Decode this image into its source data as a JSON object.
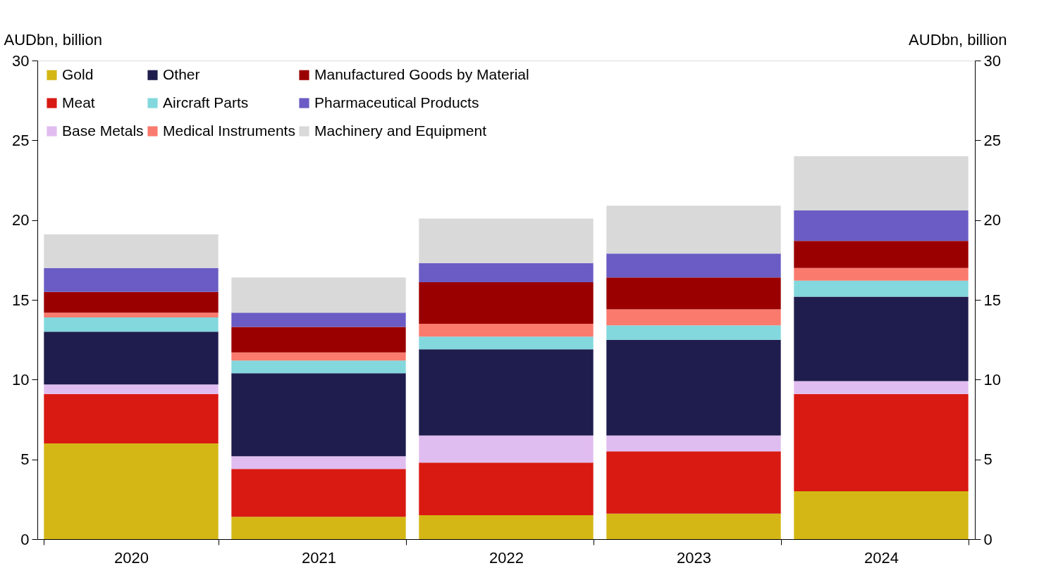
{
  "chart_data": {
    "type": "bar",
    "stacked": true,
    "ylabel": "AUDbn, billion",
    "y2label": "AUDbn, billion",
    "categories": [
      "2020",
      "2021",
      "2022",
      "2023",
      "2024"
    ],
    "ylim": [
      0,
      30
    ],
    "yticks": [
      0,
      5,
      10,
      15,
      20,
      25,
      30
    ],
    "y2lim": [
      0,
      30
    ],
    "y2ticks": [
      0,
      5,
      10,
      15,
      20,
      25,
      30
    ],
    "grid": false,
    "legend": "top left",
    "series": [
      {
        "name": "Gold",
        "color": "#d4b714",
        "values": [
          6.0,
          1.4,
          1.5,
          1.6,
          3.0
        ]
      },
      {
        "name": "Meat",
        "color": "#d81a12",
        "values": [
          3.1,
          3.0,
          3.3,
          3.9,
          6.1
        ]
      },
      {
        "name": "Base Metals",
        "color": "#e0bdf0",
        "values": [
          0.6,
          0.8,
          1.7,
          1.0,
          0.8
        ]
      },
      {
        "name": "Other",
        "color": "#1f1d4e",
        "values": [
          3.3,
          5.2,
          5.4,
          6.0,
          5.3
        ]
      },
      {
        "name": "Aircraft Parts",
        "color": "#82d8dd",
        "values": [
          0.9,
          0.8,
          0.8,
          0.9,
          1.0
        ]
      },
      {
        "name": "Medical Instruments",
        "color": "#fa7a6e",
        "values": [
          0.3,
          0.5,
          0.8,
          1.0,
          0.8
        ]
      },
      {
        "name": "Manufactured Goods by Material",
        "color": "#9b0000",
        "values": [
          1.3,
          1.6,
          2.6,
          2.0,
          1.7
        ]
      },
      {
        "name": "Pharmaceutical Products",
        "color": "#6a5cc4",
        "values": [
          1.5,
          0.9,
          1.2,
          1.5,
          1.9
        ]
      },
      {
        "name": "Machinery and Equipment",
        "color": "#d9d9d9",
        "values": [
          2.1,
          2.2,
          2.8,
          3.0,
          3.4
        ]
      }
    ]
  }
}
